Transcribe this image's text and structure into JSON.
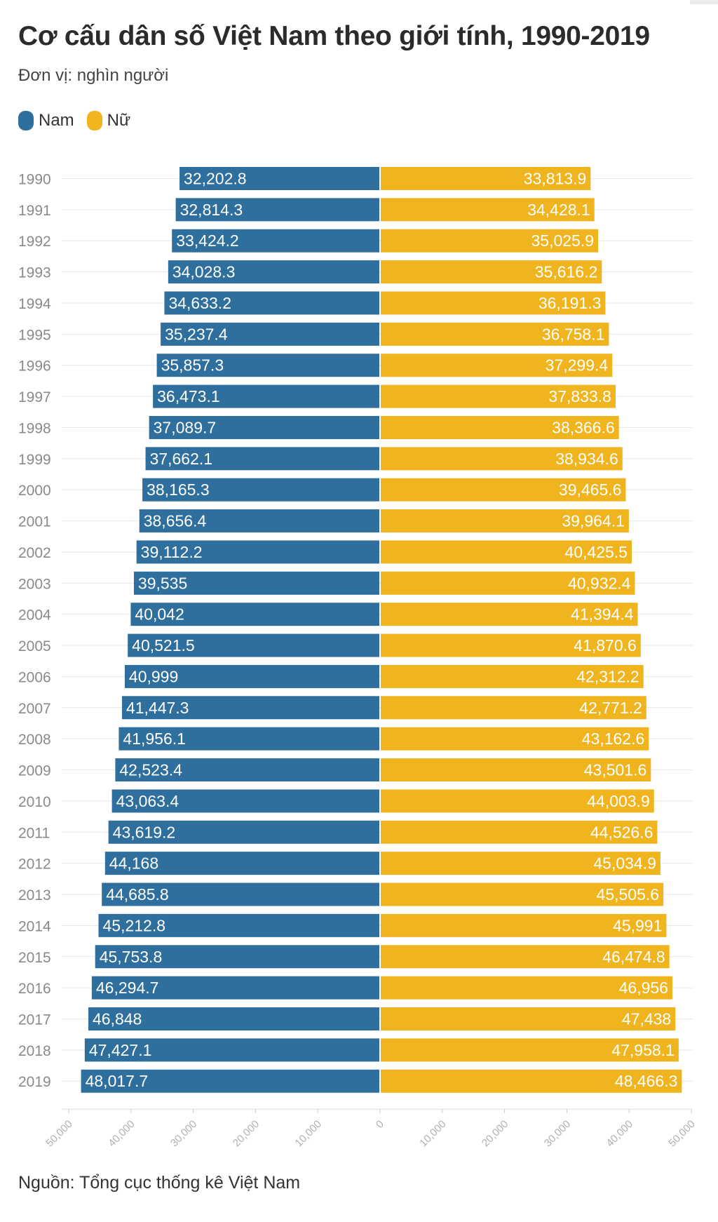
{
  "title": "Cơ cấu dân số Việt Nam theo giới tính, 1990-2019",
  "subtitle": "Đơn vị: nghìn người",
  "legend": [
    {
      "label": "Nam",
      "color": "#2f6f9d"
    },
    {
      "label": "Nữ",
      "color": "#f0b41e"
    }
  ],
  "source": "Nguồn: Tổng cục thống kê Việt Nam",
  "chart_data": {
    "type": "bar",
    "orientation": "horizontal-diverging",
    "title": "Cơ cấu dân số Việt Nam theo giới tính, 1990-2019",
    "unit": "nghìn người",
    "categories": [
      "1990",
      "1991",
      "1992",
      "1993",
      "1994",
      "1995",
      "1996",
      "1997",
      "1998",
      "1999",
      "2000",
      "2001",
      "2002",
      "2003",
      "2004",
      "2005",
      "2006",
      "2007",
      "2008",
      "2009",
      "2010",
      "2011",
      "2012",
      "2013",
      "2014",
      "2015",
      "2016",
      "2017",
      "2018",
      "2019"
    ],
    "series": [
      {
        "name": "Nam",
        "color": "#2f6f9d",
        "side": "left",
        "values": [
          32202.8,
          32814.3,
          33424.2,
          34028.3,
          34633.2,
          35237.4,
          35857.3,
          36473.1,
          37089.7,
          37662.1,
          38165.3,
          38656.4,
          39112.2,
          39535,
          40042,
          40521.5,
          40999,
          41447.3,
          41956.1,
          42523.4,
          43063.4,
          43619.2,
          44168,
          44685.8,
          45212.8,
          45753.8,
          46294.7,
          46848,
          47427.1,
          48017.7
        ],
        "labels": [
          "32,202.8",
          "32,814.3",
          "33,424.2",
          "34,028.3",
          "34,633.2",
          "35,237.4",
          "35,857.3",
          "36,473.1",
          "37,089.7",
          "37,662.1",
          "38,165.3",
          "38,656.4",
          "39,112.2",
          "39,535",
          "40,042",
          "40,521.5",
          "40,999",
          "41,447.3",
          "41,956.1",
          "42,523.4",
          "43,063.4",
          "43,619.2",
          "44,168",
          "44,685.8",
          "45,212.8",
          "45,753.8",
          "46,294.7",
          "46,848",
          "47,427.1",
          "48,017.7"
        ]
      },
      {
        "name": "Nữ",
        "color": "#f0b41e",
        "side": "right",
        "values": [
          33813.9,
          34428.1,
          35025.9,
          35616.2,
          36191.3,
          36758.1,
          37299.4,
          37833.8,
          38366.6,
          38934.6,
          39465.6,
          39964.1,
          40425.5,
          40932.4,
          41394.4,
          41870.6,
          42312.2,
          42771.2,
          43162.6,
          43501.6,
          44003.9,
          44526.6,
          45034.9,
          45505.6,
          45991,
          46474.8,
          46956,
          47438,
          47958.1,
          48466.3
        ],
        "labels": [
          "33,813.9",
          "34,428.1",
          "35,025.9",
          "35,616.2",
          "36,191.3",
          "36,758.1",
          "37,299.4",
          "37,833.8",
          "38,366.6",
          "38,934.6",
          "39,465.6",
          "39,964.1",
          "40,425.5",
          "40,932.4",
          "41,394.4",
          "41,870.6",
          "42,312.2",
          "42,771.2",
          "43,162.6",
          "43,501.6",
          "44,003.9",
          "44,526.6",
          "45,034.9",
          "45,505.6",
          "45,991",
          "46,474.8",
          "46,956",
          "47,438",
          "47,958.1",
          "48,466.3"
        ]
      }
    ],
    "x_ticks": [
      "50,000",
      "40,000",
      "30,000",
      "20,000",
      "10,000",
      "0",
      "10,000",
      "20,000",
      "30,000",
      "40,000",
      "50,000"
    ],
    "xlim": [
      -50000,
      50000
    ],
    "grid": true
  }
}
